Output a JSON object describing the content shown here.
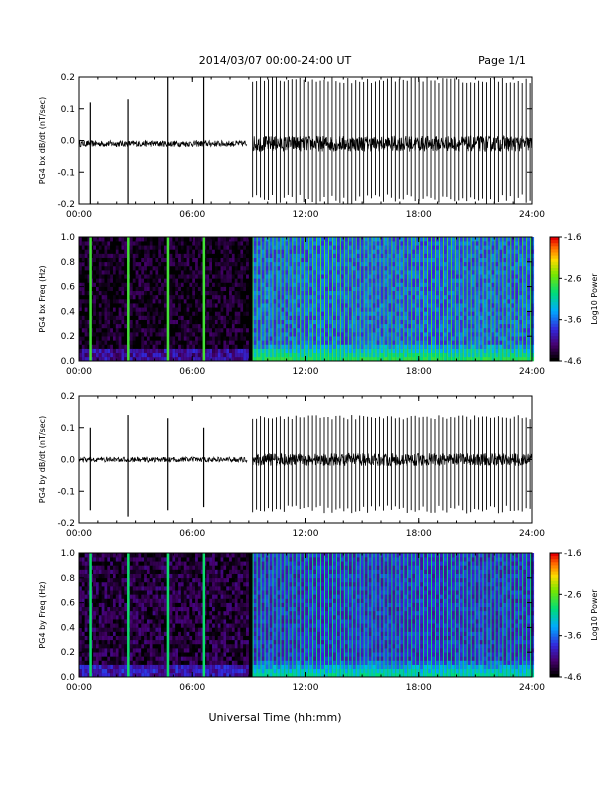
{
  "header": {
    "title": "2014/03/07   00:00-24:00 UT",
    "page": "Page 1/1"
  },
  "x_axis_label": "Universal Time (hh:mm)",
  "chart_data": [
    {
      "type": "line",
      "ylabel": "PG4 bx dB/dt (nT/sec)",
      "xlim": [
        0,
        24
      ],
      "ylim": [
        -0.2,
        0.2
      ],
      "x_ticks": [
        "00:00",
        "06:00",
        "12:00",
        "18:00",
        "24:00"
      ],
      "y_ticks": [
        "-0.2",
        "-0.1",
        "0.0",
        "0.1",
        "0.2"
      ],
      "baseline": -0.01,
      "quiet_noise": 0.01,
      "active_noise": 0.025,
      "quiet_until": 8.9,
      "gap": [
        8.9,
        9.2
      ],
      "spikes": [
        {
          "x": 0.6,
          "min": -0.2,
          "max": 0.12
        },
        {
          "x": 2.6,
          "min": -0.2,
          "max": 0.13
        },
        {
          "x": 4.7,
          "min": -0.2,
          "max": 0.2
        },
        {
          "x": 6.6,
          "min": -0.2,
          "max": 0.2
        }
      ],
      "periodic": {
        "start": 9.2,
        "end": 24,
        "period": 0.21,
        "min": -0.2,
        "max": 0.2
      }
    },
    {
      "type": "heatmap",
      "ylabel": "PG4 bx Freq (Hz)",
      "xlim": [
        0,
        24
      ],
      "ylim": [
        0,
        1.0
      ],
      "x_ticks": [
        "00:00",
        "06:00",
        "12:00",
        "18:00",
        "24:00"
      ],
      "y_ticks": [
        "0.0",
        "0.2",
        "0.4",
        "0.6",
        "0.8",
        "1.0"
      ],
      "colorbar": {
        "label": "Log10 Power",
        "min": -4.6,
        "max": -1.6,
        "ticks": [
          "-1.6",
          "-2.6",
          "-3.6",
          "-4.6"
        ]
      },
      "quiet_until": 8.9,
      "gap": [
        8.9,
        9.2
      ],
      "spikes": [
        0.6,
        2.6,
        4.7,
        6.6
      ],
      "periodic_period": 0.21,
      "low_level": -4.5,
      "active_level": -3.7,
      "strip_level": -2.7
    },
    {
      "type": "line",
      "ylabel": "PG4 by dB/dt (nT/sec)",
      "xlim": [
        0,
        24
      ],
      "ylim": [
        -0.2,
        0.2
      ],
      "x_ticks": [
        "00:00",
        "06:00",
        "12:00",
        "18:00",
        "24:00"
      ],
      "y_ticks": [
        "-0.2",
        "-0.1",
        "0.0",
        "0.1",
        "0.2"
      ],
      "baseline": 0.0,
      "quiet_noise": 0.008,
      "active_noise": 0.02,
      "quiet_until": 8.9,
      "gap": [
        8.9,
        9.2
      ],
      "spikes": [
        {
          "x": 0.6,
          "min": -0.16,
          "max": 0.1
        },
        {
          "x": 2.6,
          "min": -0.18,
          "max": 0.14
        },
        {
          "x": 4.7,
          "min": -0.16,
          "max": 0.13
        },
        {
          "x": 6.6,
          "min": -0.15,
          "max": 0.1
        }
      ],
      "periodic": {
        "start": 9.2,
        "end": 24,
        "period": 0.21,
        "min": -0.17,
        "max": 0.14
      }
    },
    {
      "type": "heatmap",
      "ylabel": "PG4 by Freq (Hz)",
      "xlim": [
        0,
        24
      ],
      "ylim": [
        0,
        1.0
      ],
      "x_ticks": [
        "00:00",
        "06:00",
        "12:00",
        "18:00",
        "24:00"
      ],
      "y_ticks": [
        "0.0",
        "0.2",
        "0.4",
        "0.6",
        "0.8",
        "1.0"
      ],
      "colorbar": {
        "label": "Log10 Power",
        "min": -4.6,
        "max": -1.6,
        "ticks": [
          "-1.6",
          "-2.6",
          "-3.6",
          "-4.6"
        ]
      },
      "quiet_until": 8.9,
      "gap": [
        8.9,
        9.2
      ],
      "spikes": [
        0.6,
        2.6,
        4.7,
        6.6
      ],
      "periodic_period": 0.21,
      "low_level": -4.4,
      "active_level": -3.9,
      "strip_level": -2.9
    }
  ]
}
